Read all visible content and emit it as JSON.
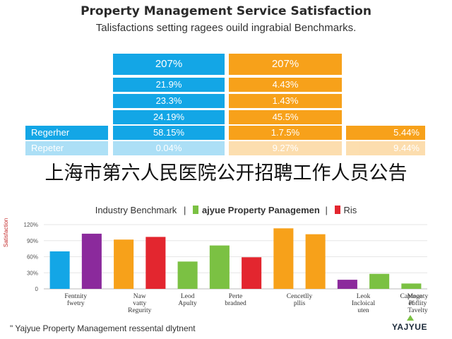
{
  "title": "Property Management Service Satisfaction",
  "subtitle": "Talisfactions setting ragees ouild ingrabial Benchmarks.",
  "table": {
    "header": {
      "blue": "207%",
      "orange": "207%"
    },
    "rows": [
      {
        "blue": "21.9%",
        "orange": "4.43%"
      },
      {
        "blue": "23.3%",
        "orange": "1.43%"
      },
      {
        "blue": "24.19%",
        "orange": "45.5%"
      },
      {
        "label": "Regerher",
        "blue": "58.15%",
        "orange": "1.7.5%",
        "right": "5.44%"
      },
      {
        "label": "Repeter",
        "blue": "0.04%",
        "orange": "9.27%",
        "right": "9.44%"
      }
    ]
  },
  "banner": "上海市第六人民医院公开招聘工作人员公告",
  "legend": {
    "items": [
      {
        "label": "Industry Benchmark",
        "color": "#13a6e6"
      },
      {
        "label": "ajyue Property Panagemen",
        "color": "#7bc143"
      },
      {
        "label": "Ris",
        "color": "#e3262f"
      }
    ],
    "separator": "|"
  },
  "ylabel_text": "Satisfaction",
  "chart_data": {
    "type": "bar",
    "ylim": [
      0,
      120
    ],
    "yticks": [
      "0",
      "30%",
      "60%",
      "90%",
      "120%"
    ],
    "grid": true,
    "categories": [
      "Fentnity fwetry",
      "Naw vatty Regurity",
      "Leod Apulty",
      "Perte bradned",
      "Cencetlly pllis",
      "Leok Incloical uten",
      "Capinge of",
      "Meonty Poflity Tavelty"
    ],
    "bars": [
      {
        "category": 0,
        "value": 70,
        "color": "#13a6e6"
      },
      {
        "category": 0,
        "value": 103,
        "color": "#8b2a9c"
      },
      {
        "category": 1,
        "value": 92,
        "color": "#f7a11a"
      },
      {
        "category": 1,
        "value": 97,
        "color": "#e3262f"
      },
      {
        "category": 2,
        "value": 51,
        "color": "#7bc143"
      },
      {
        "category": 3,
        "value": 81,
        "color": "#7bc143"
      },
      {
        "category": 3,
        "value": 59,
        "color": "#e3262f"
      },
      {
        "category": 4,
        "value": 113,
        "color": "#f7a11a"
      },
      {
        "category": 4,
        "value": 102,
        "color": "#f7a11a"
      },
      {
        "category": 5,
        "value": 17,
        "color": "#8b2a9c"
      },
      {
        "category": 5,
        "value": 28,
        "color": "#7bc143"
      },
      {
        "category": 6,
        "value": 10,
        "color": "#7bc143"
      }
    ]
  },
  "footer": "\" Yajyue Property Management ressental dlytnent",
  "logo": "YAJYUE"
}
